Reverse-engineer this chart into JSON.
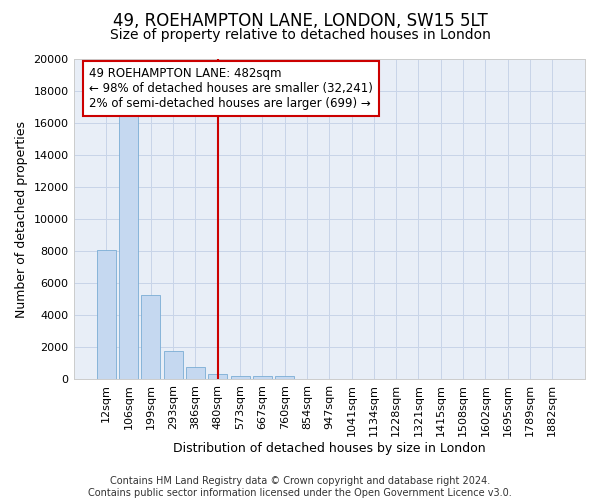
{
  "title": "49, ROEHAMPTON LANE, LONDON, SW15 5LT",
  "subtitle": "Size of property relative to detached houses in London",
  "xlabel": "Distribution of detached houses by size in London",
  "ylabel": "Number of detached properties",
  "bar_color": "#c5d8f0",
  "bar_edge_color": "#7aadd4",
  "categories": [
    "12sqm",
    "106sqm",
    "199sqm",
    "293sqm",
    "386sqm",
    "480sqm",
    "573sqm",
    "667sqm",
    "760sqm",
    "854sqm",
    "947sqm",
    "1041sqm",
    "1134sqm",
    "1228sqm",
    "1321sqm",
    "1415sqm",
    "1508sqm",
    "1602sqm",
    "1695sqm",
    "1789sqm",
    "1882sqm"
  ],
  "values": [
    8100,
    16600,
    5300,
    1800,
    750,
    350,
    230,
    210,
    200,
    0,
    0,
    0,
    0,
    0,
    0,
    0,
    0,
    0,
    0,
    0,
    0
  ],
  "ylim": [
    0,
    20000
  ],
  "yticks": [
    0,
    2000,
    4000,
    6000,
    8000,
    10000,
    12000,
    14000,
    16000,
    18000,
    20000
  ],
  "vline_x": 5,
  "annotation_text": "49 ROEHAMPTON LANE: 482sqm\n← 98% of detached houses are smaller (32,241)\n2% of semi-detached houses are larger (699) →",
  "annotation_box_color": "#ffffff",
  "annotation_box_edge_color": "#cc0000",
  "footer_text": "Contains HM Land Registry data © Crown copyright and database right 2024.\nContains public sector information licensed under the Open Government Licence v3.0.",
  "grid_color": "#c8d4e8",
  "background_color": "#e8eef7",
  "fig_background_color": "#ffffff",
  "vline_color": "#cc0000",
  "title_fontsize": 12,
  "subtitle_fontsize": 10,
  "tick_fontsize": 8,
  "ylabel_fontsize": 9,
  "xlabel_fontsize": 9,
  "annotation_fontsize": 8.5,
  "footer_fontsize": 7
}
